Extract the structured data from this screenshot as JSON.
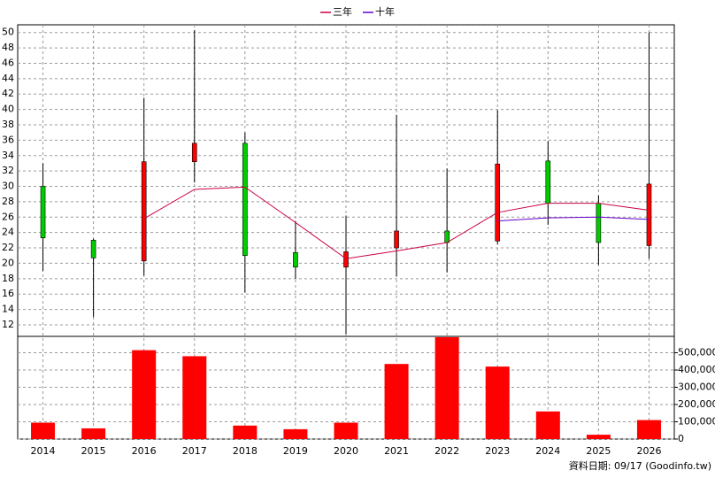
{
  "chart_data": [
    {
      "type": "candlestick",
      "open": [
        30,
        23,
        20.3,
        33.2,
        35.6,
        21.4,
        19.5,
        22,
        24.2,
        22.9,
        33.3,
        27.8,
        22.3
      ],
      "high": [
        33,
        23.2,
        41.5,
        50.3,
        37,
        25.5,
        26.2,
        39.3,
        32.3,
        39.9,
        35.9,
        28.8,
        50
      ],
      "low": [
        19,
        13,
        18.4,
        30.5,
        16.2,
        18,
        10.8,
        18.3,
        18.8,
        22.5,
        25,
        19.8,
        20.6
      ],
      "close": [
        23.3,
        20.7,
        33.2,
        35.6,
        21,
        19.5,
        21.5,
        24.2,
        22.7,
        32.9,
        27.8,
        22.7,
        30.3
      ],
      "up_color": "#ff0000",
      "down_color": "#00cc00",
      "series": [
        {
          "name": "三年",
          "color": "#cc0044",
          "values": [
            null,
            null,
            25.8,
            29.6,
            29.9,
            25.3,
            20.6,
            21.6,
            22.7,
            26.6,
            27.8,
            27.8,
            26.9
          ]
        },
        {
          "name": "十年",
          "color": "#6600cc",
          "values": [
            null,
            null,
            null,
            null,
            null,
            null,
            null,
            null,
            null,
            25.5,
            25.9,
            26.0,
            25.7
          ]
        }
      ],
      "ylim": [
        10.5,
        51
      ],
      "yticks": [
        12,
        14,
        16,
        18,
        20,
        22,
        24,
        26,
        28,
        30,
        32,
        34,
        36,
        38,
        40,
        42,
        44,
        46,
        48,
        50
      ],
      "grid": true
    },
    {
      "type": "bar",
      "categories": [
        "2014",
        "2015",
        "2016",
        "2017",
        "2018",
        "2019",
        "2020",
        "2021",
        "2022",
        "2023",
        "2024",
        "2025",
        "2026"
      ],
      "values": [
        95000,
        62000,
        515000,
        480000,
        78000,
        57000,
        95000,
        435000,
        590000,
        420000,
        160000,
        25000,
        110000
      ],
      "color": "#ff0000",
      "ylim": [
        0,
        595000
      ],
      "yticks": [
        0,
        {
          "value": 100000,
          "label": "100,000"
        },
        {
          "value": 200000,
          "label": "200,000"
        },
        {
          "value": 300000,
          "label": "300,000"
        },
        {
          "value": 400000,
          "label": "400,000"
        },
        {
          "value": 500000,
          "label": "500,000"
        }
      ],
      "grid": true
    }
  ],
  "footer": "資料日期: 09/17  (Goodinfo.tw)"
}
